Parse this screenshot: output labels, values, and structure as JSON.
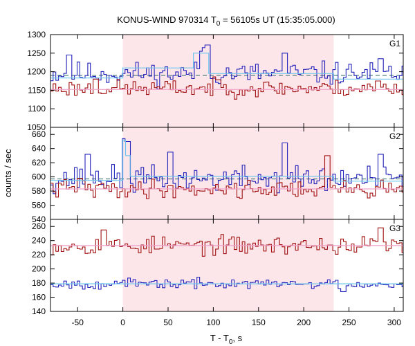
{
  "chart_data": {
    "type": "line",
    "title": "KONUS-WIND 970314 T",
    "title_sub": "0",
    "title_rest": " = 56105s UT (15:35:05.000)",
    "xlabel": "T - T",
    "xlabel_sub": "0",
    "xlabel_rest": ", s",
    "ylabel": "counts / sec",
    "xlim": [
      -80,
      310
    ],
    "xticks": [
      -50,
      0,
      50,
      100,
      150,
      200,
      250,
      300
    ],
    "shaded_interval": [
      0,
      233
    ],
    "colors": {
      "blue": "#2222bb",
      "red": "#a01010",
      "fit_blue": "#6ec6ee",
      "fit_red": "#f0a0c8",
      "shade": "#fde6ea",
      "dash": "#2a6a6a"
    },
    "bin_width": 2.944,
    "panels": [
      {
        "label": "G1",
        "ylim": [
          1050,
          1300
        ],
        "yticks": [
          1050,
          1100,
          1150,
          1200,
          1250,
          1300
        ],
        "series": [
          {
            "color_key": "blue",
            "mean": 1195,
            "spread": 22,
            "seed": 11,
            "spikes": [
              [
                -60,
                1245
              ],
              [
                85,
                1255
              ],
              [
                89,
                1265
              ],
              [
                93,
                1272
              ],
              [
                178,
                1250
              ],
              [
                283,
                1235
              ]
            ]
          },
          {
            "color_key": "red",
            "mean": 1155,
            "spread": 16,
            "seed": 23,
            "spikes": [
              [
                -30,
                1180
              ],
              [
                105,
                1178
              ],
              [
                280,
                1175
              ]
            ]
          }
        ],
        "fits": [
          {
            "color_key": "fit_blue",
            "segments": [
              [
                -80,
                0,
                1183
              ],
              [
                0,
                78,
                1210
              ],
              [
                78,
                95,
                1250
              ],
              [
                95,
                233,
                1195
              ],
              [
                233,
                310,
                1180
              ]
            ]
          },
          {
            "color_key": "fit_red",
            "segments": [
              [
                -80,
                310,
                1152
              ]
            ]
          }
        ],
        "dash_level": 1190
      },
      {
        "label": "G2",
        "ylim": [
          540,
          670
        ],
        "yticks": [
          540,
          560,
          580,
          600,
          620,
          640,
          660
        ],
        "series": [
          {
            "color_key": "blue",
            "mean": 597,
            "spread": 13,
            "seed": 37,
            "spikes": [
              [
                -40,
                632
              ],
              [
                0,
                654
              ],
              [
                3,
                650
              ],
              [
                52,
                635
              ],
              [
                178,
                648
              ],
              [
                283,
                632
              ]
            ]
          },
          {
            "color_key": "red",
            "mean": 583,
            "spread": 9,
            "seed": 41,
            "spikes": [
              [
                225,
                630
              ],
              [
                -50,
                598
              ]
            ]
          }
        ],
        "fits": [
          {
            "color_key": "fit_blue",
            "segments": [
              [
                -80,
                0,
                595
              ],
              [
                0,
                3,
                652
              ],
              [
                3,
                8,
                630
              ],
              [
                8,
                233,
                601
              ],
              [
                233,
                310,
                594
              ]
            ]
          },
          {
            "color_key": "fit_red",
            "segments": [
              [
                -80,
                310,
                583
              ]
            ]
          }
        ],
        "dash_level": 597
      },
      {
        "label": "G3",
        "ylim": [
          140,
          270
        ],
        "yticks": [
          140,
          160,
          180,
          200,
          220,
          240,
          260
        ],
        "series": [
          {
            "color_key": "red",
            "mean": 233,
            "spread": 9,
            "seed": 53,
            "spikes": [
              [
                -22,
                255
              ],
              [
                285,
                258
              ]
            ]
          },
          {
            "color_key": "blue",
            "mean": 179,
            "spread": 5,
            "seed": 67,
            "spikes": [
              [
                242,
                168
              ]
            ]
          }
        ],
        "fits": [
          {
            "color_key": "fit_red",
            "segments": [
              [
                -80,
                310,
                233
              ]
            ]
          },
          {
            "color_key": "fit_blue",
            "segments": [
              [
                -80,
                310,
                179
              ]
            ]
          }
        ],
        "dash_level": null
      }
    ]
  }
}
